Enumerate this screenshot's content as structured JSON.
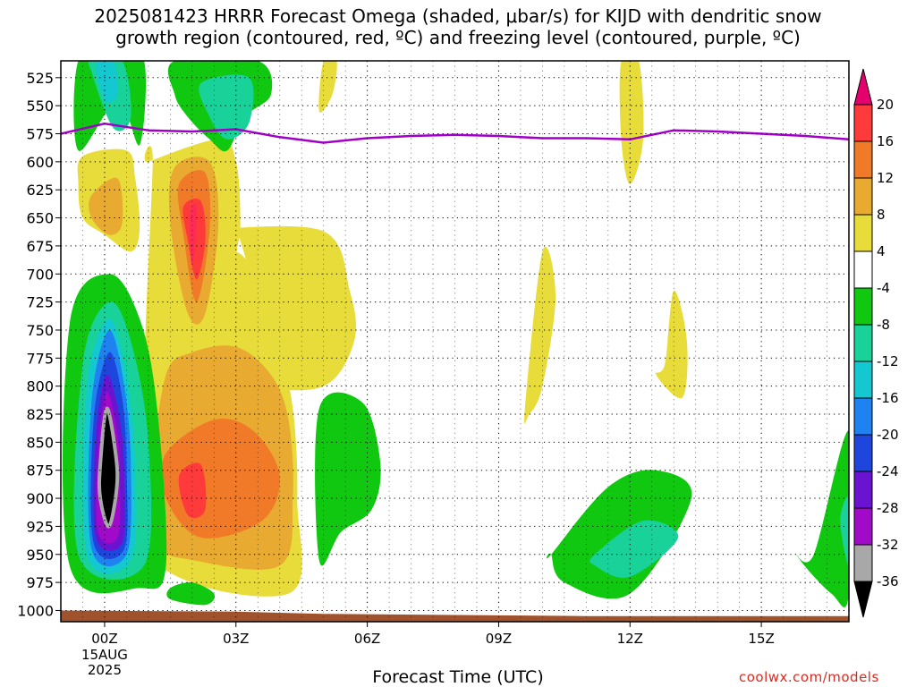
{
  "header": {
    "title_line1": "2025081423 HRRR Forecast Omega (shaded, μbar/s) for KIJD with dendritic snow",
    "title_line2": "growth region (contoured, red, ºC) and freezing level (contoured, purple, ºC)"
  },
  "footer": {
    "xlabel": "Forecast Time (UTC)",
    "credit": "coolwx.com/models"
  },
  "chart_data": {
    "type": "heatmap",
    "title": "2025081423 HRRR Forecast Omega (shaded, μbar/s) for KIJD with dendritic snow growth region (contoured, red, ºC) and freezing level (contoured, purple, ºC)",
    "xlabel": "Forecast Time (UTC)",
    "ylabel": "",
    "x_axis": {
      "unit": "hours after 00Z 15AUG 2025",
      "range": [
        -1,
        17
      ],
      "ticks": [
        0,
        3,
        6,
        9,
        12,
        15
      ],
      "tick_labels": [
        "00Z",
        "03Z",
        "06Z",
        "09Z",
        "12Z",
        "15Z"
      ],
      "sub_labels": [
        "15AUG",
        "2025"
      ],
      "minor_grid": [
        -0.5,
        0.5,
        1,
        1.5,
        2,
        2.5,
        3.5,
        4,
        4.5,
        5,
        5.5,
        6.5,
        7,
        7.5,
        8,
        8.5,
        9.5,
        10,
        10.5,
        11,
        11.5,
        12.5,
        13,
        13.5,
        14,
        14.5,
        15.5,
        16,
        16.5
      ]
    },
    "y_axis": {
      "unit": "hPa",
      "reversed": true,
      "range": [
        510,
        1010
      ],
      "ticks": [
        525,
        550,
        575,
        600,
        625,
        650,
        675,
        700,
        725,
        750,
        775,
        800,
        825,
        850,
        875,
        900,
        925,
        950,
        975,
        1000
      ]
    },
    "grid": true,
    "legend": "colorbar-right",
    "colorbar": {
      "labels": [
        "20",
        "16",
        "12",
        "8",
        "4",
        "-4",
        "-8",
        "-12",
        "-16",
        "-20",
        "-24",
        "-28",
        "-32",
        "-36"
      ],
      "levels": [
        20,
        16,
        12,
        8,
        4,
        -4,
        -8,
        -12,
        -16,
        -20,
        -24,
        -28,
        -32,
        -36
      ],
      "colors": [
        "#ff2a55",
        "#ff3a3a",
        "#f07a28",
        "#e8aa30",
        "#e8dc3a",
        "#ffffff",
        "#10c810",
        "#18d29a",
        "#14c8d2",
        "#1e82f0",
        "#1e46dc",
        "#6a14d2",
        "#a00ac8",
        "#a8a8a8",
        "#000000"
      ],
      "top_arrow_color": "#e6006e",
      "bottom_arrow_color": "#000000"
    },
    "freezing_level": {
      "color": "#a000c8",
      "x": [
        -1,
        0,
        1,
        2,
        3,
        4,
        5,
        6,
        7,
        8,
        9,
        10,
        11,
        12,
        13,
        14,
        15,
        16,
        17
      ],
      "pressure": [
        575,
        566,
        572,
        573,
        571,
        578,
        583,
        579,
        577,
        576,
        577,
        579,
        579,
        580,
        572,
        573,
        575,
        577,
        580
      ]
    },
    "terrain": {
      "color": "#a0522d",
      "x": [
        -1,
        3,
        5,
        8,
        11,
        14,
        17
      ],
      "pressure": [
        1000,
        1001,
        1003,
        1004,
        1005,
        1005,
        1005
      ]
    },
    "shaded_regions": [
      {
        "level": 4,
        "x": [
          2.5,
          5.0,
          5.6,
          5.7,
          5.0,
          3.4,
          2.6,
          2.3,
          2.0,
          2.3,
          3.0,
          3.5,
          4.0,
          3.8,
          3.0
        ],
        "p": [
          660,
          662,
          715,
          760,
          800,
          800,
          783,
          745,
          700,
          682,
          680,
          700,
          725,
          765,
          660
        ]
      },
      {
        "level": 4,
        "x": [
          1.0,
          2.6,
          3.0,
          3.1,
          3.0,
          3.5,
          4.0,
          4.3,
          4.4,
          4.2,
          1.0,
          0.9,
          1.1
        ],
        "p": [
          600,
          580,
          600,
          655,
          700,
          750,
          775,
          820,
          900,
          985,
          950,
          800,
          600
        ]
      },
      {
        "level": 4,
        "x": [
          -0.5,
          0.5,
          0.7,
          0.8,
          0.6,
          0.0,
          -0.5,
          -0.6
        ],
        "p": [
          595,
          590,
          615,
          660,
          680,
          665,
          650,
          620
        ]
      },
      {
        "level": 4,
        "x": [
          1.0,
          0.9,
          0.9,
          1.0
        ],
        "p": [
          800,
          800,
          950,
          950
        ]
      },
      {
        "level": 4,
        "x": [
          5.0,
          5.3,
          5.2,
          4.9
        ],
        "p": [
          510,
          510,
          540,
          555
        ]
      },
      {
        "level": 4,
        "x": [
          9.6,
          10.0,
          10.3,
          10.0,
          9.7
        ],
        "p": [
          820,
          680,
          720,
          800,
          825
        ]
      },
      {
        "level": 4,
        "x": [
          12.8,
          13.0,
          13.3,
          13.2,
          12.6
        ],
        "p": [
          780,
          715,
          760,
          810,
          790
        ]
      },
      {
        "level": 4,
        "x": [
          11.8,
          12.2,
          12.3,
          12.0,
          11.8
        ],
        "p": [
          510,
          510,
          580,
          620,
          580
        ]
      },
      {
        "level": 8,
        "x": [
          1.6,
          2.4,
          2.6,
          2.3,
          1.9,
          1.5
        ],
        "p": [
          605,
          600,
          655,
          735,
          735,
          655
        ]
      },
      {
        "level": 8,
        "x": [
          2.0,
          3.0,
          3.8,
          4.2,
          4.3,
          4.0,
          2.0,
          1.2,
          1.1,
          1.4
        ],
        "p": [
          770,
          765,
          790,
          830,
          900,
          960,
          955,
          940,
          880,
          790
        ]
      },
      {
        "level": 8,
        "x": [
          -0.3,
          0.3,
          0.4,
          0.1,
          -0.3
        ],
        "p": [
          630,
          615,
          655,
          665,
          650
        ]
      },
      {
        "level": 12,
        "x": [
          1.7,
          2.3,
          2.4,
          2.1,
          1.8
        ],
        "p": [
          620,
          610,
          660,
          725,
          665
        ]
      },
      {
        "level": 12,
        "x": [
          1.4,
          2.5,
          3.4,
          4.0,
          3.6,
          2.2,
          1.4
        ],
        "p": [
          860,
          830,
          840,
          880,
          920,
          935,
          900
        ]
      },
      {
        "level": 16,
        "x": [
          1.8,
          2.2,
          2.3,
          2.1,
          1.9
        ],
        "p": [
          640,
          635,
          670,
          705,
          670
        ]
      },
      {
        "level": 16,
        "x": [
          1.7,
          2.2,
          2.3,
          1.9
        ],
        "p": [
          880,
          870,
          910,
          915
        ]
      },
      {
        "level": 20,
        "x": [
          1.95,
          2.1,
          2.05,
          1.98
        ],
        "p": [
          645,
          640,
          680,
          690
        ]
      },
      {
        "level": -8,
        "x": [
          -0.6,
          0.2,
          0.9,
          0.8,
          0.3,
          -0.6
        ],
        "p": [
          510,
          510,
          510,
          585,
          545,
          590
        ]
      },
      {
        "level": -8,
        "x": [
          1.6,
          3.5,
          3.8,
          3.2,
          2.8,
          2.4,
          1.9,
          1.6
        ],
        "p": [
          510,
          510,
          540,
          560,
          590,
          580,
          560,
          540
        ]
      },
      {
        "level": -8,
        "x": [
          -0.8,
          0.1,
          0.8,
          1.2,
          1.4,
          0.8,
          -0.8
        ],
        "p": [
          745,
          700,
          740,
          820,
          960,
          980,
          960
        ]
      },
      {
        "level": -8,
        "x": [
          1.5,
          2.0,
          2.5,
          2.3,
          1.5
        ],
        "p": [
          980,
          975,
          985,
          995,
          990
        ]
      },
      {
        "level": -8,
        "x": [
          4.9,
          5.9,
          6.3,
          6.1,
          5.4,
          4.9
        ],
        "p": [
          820,
          815,
          870,
          910,
          930,
          955
        ]
      },
      {
        "level": -8,
        "x": [
          10.2,
          11.5,
          12.6,
          13.4,
          12.0,
          10.5,
          10.2
        ],
        "p": [
          950,
          890,
          875,
          900,
          985,
          975,
          950
        ]
      },
      {
        "level": -8,
        "x": [
          16.2,
          17.0,
          17.0,
          16.6,
          15.8
        ],
        "p": [
          950,
          840,
          985,
          985,
          950
        ]
      },
      {
        "level": -12,
        "x": [
          -0.3,
          0.4,
          0.6,
          0.2,
          -0.3
        ],
        "p": [
          510,
          510,
          560,
          570,
          520
        ]
      },
      {
        "level": -12,
        "x": [
          2.2,
          3.3,
          3.3,
          2.8,
          2.4
        ],
        "p": [
          530,
          525,
          565,
          580,
          560
        ]
      },
      {
        "level": -12,
        "x": [
          -0.5,
          0.1,
          0.6,
          1.0,
          0.9,
          -0.6
        ],
        "p": [
          780,
          725,
          760,
          850,
          960,
          950
        ]
      },
      {
        "level": -12,
        "x": [
          11.2,
          12.3,
          13.1,
          12.0,
          11.2
        ],
        "p": [
          950,
          920,
          935,
          970,
          960
        ]
      },
      {
        "level": -12,
        "x": [
          16.8,
          17.0,
          17.0
        ],
        "p": [
          920,
          900,
          960
        ]
      },
      {
        "level": -16,
        "x": [
          -0.2,
          0.2,
          0.3,
          0.0
        ],
        "p": [
          510,
          510,
          540,
          545
        ]
      },
      {
        "level": -16,
        "x": [
          -0.4,
          0.1,
          0.5,
          0.7,
          0.6,
          -0.4
        ],
        "p": [
          800,
          740,
          790,
          870,
          955,
          950
        ]
      },
      {
        "level": -20,
        "x": [
          -0.3,
          0.1,
          0.45,
          0.6,
          0.5,
          -0.3
        ],
        "p": [
          815,
          750,
          800,
          870,
          950,
          945
        ]
      },
      {
        "level": -24,
        "x": [
          -0.25,
          0.1,
          0.4,
          0.5,
          0.45,
          -0.25
        ],
        "p": [
          830,
          770,
          810,
          870,
          945,
          940
        ]
      },
      {
        "level": -28,
        "x": [
          -0.2,
          0.05,
          0.35,
          0.45,
          0.4,
          -0.2
        ],
        "p": [
          845,
          790,
          830,
          880,
          940,
          935
        ]
      },
      {
        "level": -32,
        "x": [
          -0.15,
          0.05,
          0.3,
          0.35,
          0.3,
          -0.15
        ],
        "p": [
          860,
          805,
          845,
          885,
          935,
          930
        ]
      },
      {
        "level": -36,
        "x": [
          -0.1,
          0.05,
          0.25,
          0.28,
          0.1,
          -0.1
        ],
        "p": [
          870,
          820,
          860,
          890,
          925,
          900
        ]
      }
    ]
  }
}
